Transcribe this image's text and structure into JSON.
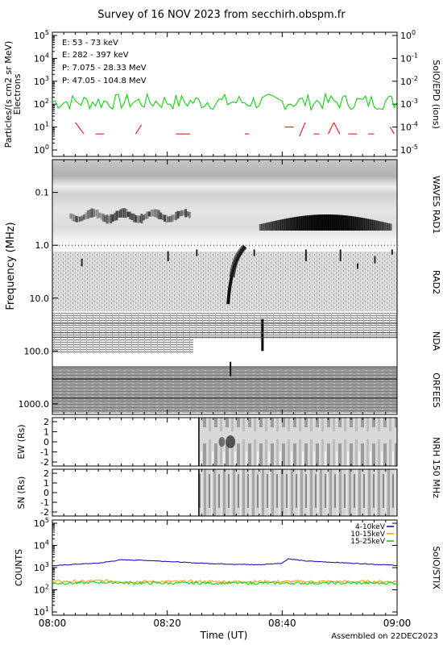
{
  "title": "Survey of 16 NOV 2023 from secchirh.obspm.fr",
  "footer": "Assembled on 22DEC2023",
  "xlabel": "Time (UT)",
  "x_ticks": [
    "08:00",
    "08:20",
    "08:40",
    "09:00"
  ],
  "colors": {
    "green": "#00cc00",
    "red": "#dd0000",
    "blue": "#0000bb",
    "orange": "#ff9900",
    "black": "#000000"
  },
  "chart_data": [
    {
      "type": "line",
      "panel": "SolO/EPD",
      "right_title": "SolO/EPD (ions)",
      "ylabel_left": "Particles/(s cm2 sr MeV)",
      "ylabel_left2": "Electrons",
      "y_ticks_left": [
        "10^0",
        "10^1",
        "10^2",
        "10^3",
        "10^4",
        "10^5"
      ],
      "y_ticks_right": [
        "10^-5",
        "10^-4",
        "10^-3",
        "10^-2",
        "10^-1",
        "10^0"
      ],
      "legend": [
        "E: 53 - 73 keV",
        "E: 282 - 397 keV",
        "P: 7.075 - 28.33 MeV",
        "P: 47.05 - 104.8 MeV"
      ],
      "x_range_min": [
        0,
        60
      ],
      "series": [
        {
          "name": "E: 53 - 73 keV",
          "log_level_mean": 2.1,
          "log_level_spread": 0.35,
          "color": "green"
        },
        {
          "name": "E: 282 - 397 keV",
          "color": "red",
          "segments_min_log": [
            [
              4.0,
              1.2,
              5.5,
              0.7
            ],
            [
              7.5,
              0.7,
              9,
              0.7
            ],
            [
              14.5,
              0.7,
              15.5,
              1.1
            ],
            [
              21.5,
              0.7,
              24,
              0.7
            ],
            [
              33.5,
              0.7,
              34.2,
              0.7
            ],
            [
              40.5,
              1.0,
              42,
              1.0
            ],
            [
              43,
              0.6,
              44,
              1.2
            ],
            [
              45.5,
              0.7,
              46.5,
              0.7
            ],
            [
              48,
              0.7,
              49,
              1.2
            ],
            [
              49,
              1.2,
              50,
              0.7
            ],
            [
              51.5,
              0.7,
              53,
              0.7
            ],
            [
              55,
              0.7,
              56,
              0.7
            ],
            [
              58.8,
              1.0,
              59.5,
              0.7
            ]
          ]
        }
      ]
    },
    {
      "type": "heatmap",
      "panel": "radio spectrum",
      "ylabel": "Frequency (MHz)",
      "y_ticks": [
        "0.1",
        "1.0",
        "10.0",
        "100.0",
        "1000.0"
      ],
      "right_labels": [
        "WAVES RAD1",
        "RAD2",
        "NDA",
        "ORFEES"
      ],
      "features": {
        "type_iii_burst_time_min": 31,
        "type_iii_burst_freq_mhz": [
          1.0,
          13.0
        ],
        "rad1_emission_times_min": [
          [
            3,
            24
          ],
          [
            36,
            59
          ]
        ],
        "nda_spike_time_min": 36.5
      }
    },
    {
      "type": "heatmap",
      "panel": "NRH EW",
      "ylabel": "EW (Rs)",
      "y_ticks": [
        "2",
        "1",
        "0",
        "-1",
        "-2"
      ],
      "data_start_min": 25.5
    },
    {
      "type": "heatmap",
      "panel": "NRH SN",
      "ylabel": "SN (Rs)",
      "y_ticks": [
        "2",
        "1",
        "0",
        "-1",
        "-2"
      ],
      "right_label": "NRH 150 MHz",
      "data_start_min": 25.5
    },
    {
      "type": "line",
      "panel": "SolO/STIX",
      "right_title": "SolO/STIX",
      "ylabel": "COUNTS",
      "y_ticks": [
        "10^1",
        "10^2",
        "10^3",
        "10^4",
        "10^5"
      ],
      "legend": [
        "4-10keV",
        "10-15keV",
        "15-25keV"
      ],
      "series": [
        {
          "name": "4-10keV",
          "color": "blue",
          "points_min_log": [
            [
              0,
              3.08
            ],
            [
              4,
              3.15
            ],
            [
              8,
              3.2
            ],
            [
              12,
              3.35
            ],
            [
              16,
              3.33
            ],
            [
              20,
              3.28
            ],
            [
              24,
              3.22
            ],
            [
              28,
              3.18
            ],
            [
              32,
              3.15
            ],
            [
              36,
              3.13
            ],
            [
              40,
              3.2
            ],
            [
              41,
              3.4
            ],
            [
              44,
              3.3
            ],
            [
              48,
              3.25
            ],
            [
              52,
              3.2
            ],
            [
              56,
              3.15
            ],
            [
              60,
              3.1
            ]
          ]
        },
        {
          "name": "10-15keV",
          "color": "orange",
          "log_level_mean": 2.37
        },
        {
          "name": "15-25keV",
          "color": "green",
          "log_level_mean": 2.3
        }
      ]
    }
  ]
}
